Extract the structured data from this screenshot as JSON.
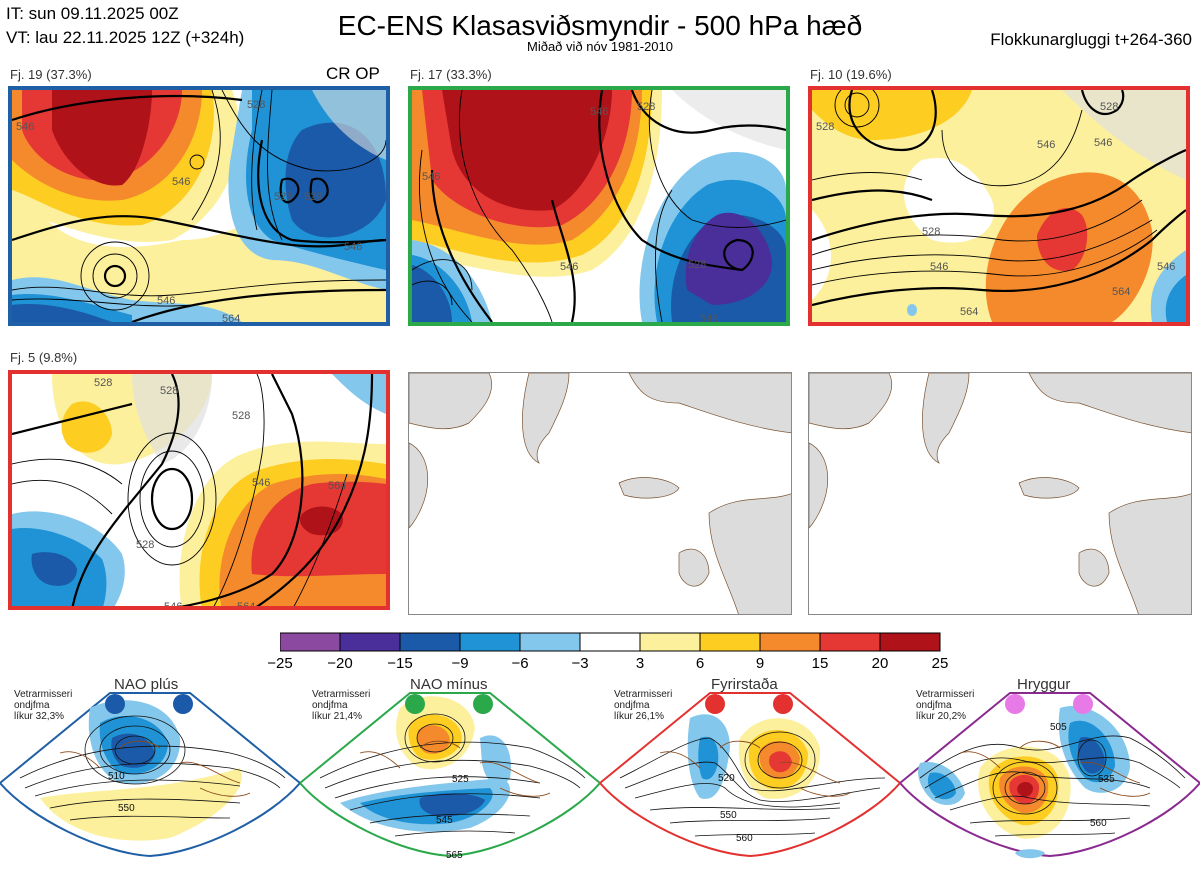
{
  "header": {
    "it": "IT: sun 09.11.2025 00Z",
    "vt": "VT: lau 22.11.2025 12Z  (+324h)",
    "title": "EC-ENS Klasasviðsmyndir - 500 hPa hæð",
    "subtitle": "Miðað við nóv 1981-2010",
    "window": "Flokkunargluggi t+264-360"
  },
  "panels": [
    {
      "label": "Fj. 19 (37.3%)",
      "extra": "CR OP",
      "border": "#1f5fa6",
      "contours": [
        "546",
        "546",
        "546",
        "528",
        "528",
        "528",
        "546",
        "564"
      ]
    },
    {
      "label": "Fj. 17 (33.3%)",
      "border": "#2aa84a",
      "contours": [
        "546",
        "546",
        "528",
        "528",
        "546",
        "546"
      ]
    },
    {
      "label": "Fj. 10 (19.6%)",
      "border": "#e3312f",
      "contours": [
        "546",
        "528",
        "546",
        "528",
        "546",
        "564",
        "546",
        "564",
        "528"
      ]
    },
    {
      "label": "Fj. 5 (9.8%)",
      "border": "#e3312f",
      "contours": [
        "528",
        "528",
        "528",
        "546",
        "564",
        "528",
        "546",
        "564"
      ]
    }
  ],
  "colorbar": {
    "colors": [
      "#8b4aa0",
      "#4a2f9a",
      "#1a5aa8",
      "#1f93d6",
      "#84c7ec",
      "#ffffff",
      "#fdf09c",
      "#fdcd22",
      "#f58a2c",
      "#e53834",
      "#b0121a"
    ],
    "ticks": [
      "−25",
      "−20",
      "−15",
      "−9",
      "−6",
      "−3",
      "3",
      "6",
      "9",
      "15",
      "20",
      "25"
    ]
  },
  "regimes": [
    {
      "name": "NAO plús",
      "info": [
        "Vetrarmisseri",
        "ondjfma",
        "líkur 32,3%"
      ],
      "color": "#1f5fa6",
      "dot": "#1a5aa8",
      "labels": [
        "510",
        "550"
      ]
    },
    {
      "name": "NAO mínus",
      "info": [
        "Vetrarmisseri",
        "ondjfma",
        "líkur 21,4%"
      ],
      "color": "#2aa84a",
      "dot": "#2aa84a",
      "labels": [
        "525",
        "545",
        "565"
      ]
    },
    {
      "name": "Fyrirstaða",
      "info": [
        "Vetrarmisseri",
        "ondjfma",
        "líkur 26,1%"
      ],
      "color": "#e3312f",
      "dot": "#e3312f",
      "labels": [
        "520",
        "550",
        "560"
      ]
    },
    {
      "name": "Hryggur",
      "info": [
        "Vetrarmisseri",
        "ondjfma",
        "líkur 20,2%"
      ],
      "color": "#8a2a8f",
      "dot": "#e77ae6",
      "labels": [
        "505",
        "535",
        "560"
      ]
    }
  ]
}
